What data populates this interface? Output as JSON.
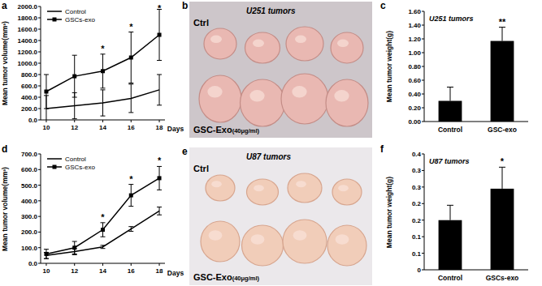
{
  "chart_data": [
    {
      "type": "line",
      "panel_label": "a",
      "x_label": "Days",
      "y_label": "Mean tumor volume(mm³)",
      "x": [
        10,
        12,
        14,
        16,
        18
      ],
      "xlim": [
        9.6,
        18.4
      ],
      "xticks": [
        10,
        12,
        14,
        16,
        18
      ],
      "ylim": [
        0,
        2000
      ],
      "yticks": [
        {
          "value": 0,
          "label": "0.0"
        },
        {
          "value": 200,
          "label": "200.0"
        },
        {
          "value": 400,
          "label": "400.0"
        },
        {
          "value": 600,
          "label": "600.0"
        },
        {
          "value": 800,
          "label": "800.0"
        },
        {
          "value": 1000,
          "label": "1000.0"
        },
        {
          "value": 1200,
          "label": "1200.0"
        },
        {
          "value": 1400,
          "label": "1400.0"
        },
        {
          "value": 1600,
          "label": "1600.0"
        },
        {
          "value": 1800,
          "label": "1800.0"
        },
        {
          "value": 2000,
          "label": "2000.0"
        }
      ],
      "legend": "upper left",
      "series": [
        {
          "name": "Control",
          "color": "#000000",
          "marker": "none",
          "values": [
            200,
            250,
            300,
            380,
            530
          ],
          "errors": [
            230,
            230,
            230,
            250,
            270
          ]
        },
        {
          "name": "GSCs-exo",
          "color": "#000000",
          "marker": "square",
          "values": [
            500,
            770,
            860,
            1100,
            1500
          ],
          "errors": [
            300,
            370,
            300,
            450,
            450
          ]
        }
      ],
      "annotations": [
        {
          "x": 14,
          "text": "*"
        },
        {
          "x": 16,
          "text": "*"
        },
        {
          "x": 18,
          "text": "*"
        }
      ]
    },
    {
      "type": "bar",
      "panel_label": "c",
      "title": "U251 tumors",
      "y_label": "Mean tumor weight(g)",
      "categories": [
        "Control",
        "GSC-exo"
      ],
      "values": [
        0.3,
        1.17
      ],
      "errors": [
        0.2,
        0.2
      ],
      "color": "#000000",
      "ylim": [
        0,
        1.6
      ],
      "yticks": [
        {
          "value": 0,
          "label": "0.00"
        },
        {
          "value": 0.2,
          "label": "0.20"
        },
        {
          "value": 0.4,
          "label": "0.40"
        },
        {
          "value": 0.6,
          "label": "0.60"
        },
        {
          "value": 0.8,
          "label": "0.80"
        },
        {
          "value": 1.0,
          "label": "1.00"
        },
        {
          "value": 1.2,
          "label": "1.20"
        },
        {
          "value": 1.4,
          "label": "1.40"
        },
        {
          "value": 1.6,
          "label": "1.60"
        }
      ],
      "annotations": [
        {
          "category": 1,
          "text": "**"
        }
      ]
    },
    {
      "type": "line",
      "panel_label": "d",
      "x_label": "Days",
      "y_label": "Mean tumor volume(mm³)",
      "x": [
        10,
        12,
        14,
        16,
        18
      ],
      "xlim": [
        9.6,
        18.4
      ],
      "xticks": [
        10,
        12,
        14,
        16,
        18
      ],
      "ylim": [
        0,
        700
      ],
      "yticks": [
        {
          "value": 0,
          "label": "0.0"
        },
        {
          "value": 100,
          "label": "100.0"
        },
        {
          "value": 200,
          "label": "200.0"
        },
        {
          "value": 300,
          "label": "300.0"
        },
        {
          "value": 400,
          "label": "400.0"
        },
        {
          "value": 500,
          "label": "500.0"
        },
        {
          "value": 600,
          "label": "600.0"
        },
        {
          "value": 700,
          "label": "700.0"
        }
      ],
      "legend": "upper left",
      "series": [
        {
          "name": "Control",
          "color": "#000000",
          "marker": "none",
          "values": [
            50,
            75,
            105,
            220,
            335
          ],
          "errors": [
            20,
            20,
            10,
            15,
            25
          ]
        },
        {
          "name": "GSCs-exo",
          "color": "#000000",
          "marker": "square",
          "values": [
            60,
            100,
            215,
            435,
            545
          ],
          "errors": [
            30,
            40,
            45,
            70,
            75
          ]
        }
      ],
      "annotations": [
        {
          "x": 14,
          "text": "*"
        },
        {
          "x": 16,
          "text": "*"
        },
        {
          "x": 18,
          "text": "*"
        }
      ]
    },
    {
      "type": "bar",
      "panel_label": "f",
      "title": "U87 tumors",
      "y_label": "Mean tumor weight(g)",
      "categories": [
        "Control",
        "GSCs-exo"
      ],
      "values": [
        0.15,
        0.245
      ],
      "errors": [
        0.045,
        0.065
      ],
      "color": "#000000",
      "ylim": [
        0,
        0.35
      ],
      "yticks": [
        0,
        {
          "value": 0.05,
          "label": "0.1"
        },
        0.1,
        {
          "value": 0.15,
          "label": "0.2"
        },
        0.2,
        {
          "value": 0.25,
          "label": "0.3"
        },
        0.3,
        {
          "value": 0.35,
          "label": "0.4"
        }
      ],
      "annotations": [
        {
          "category": 1,
          "text": "*"
        }
      ]
    }
  ],
  "photos": [
    {
      "panel_label": "b",
      "title": "U251 tumors",
      "top_label": "Ctrl",
      "bottom_label": "GSC-Exo",
      "bottom_note": "(40μg/ml)"
    },
    {
      "panel_label": "e",
      "title": "U87 tumors",
      "top_label": "Ctrl",
      "bottom_label": "GSC-Exo",
      "bottom_note": "(40μg/ml)"
    }
  ]
}
